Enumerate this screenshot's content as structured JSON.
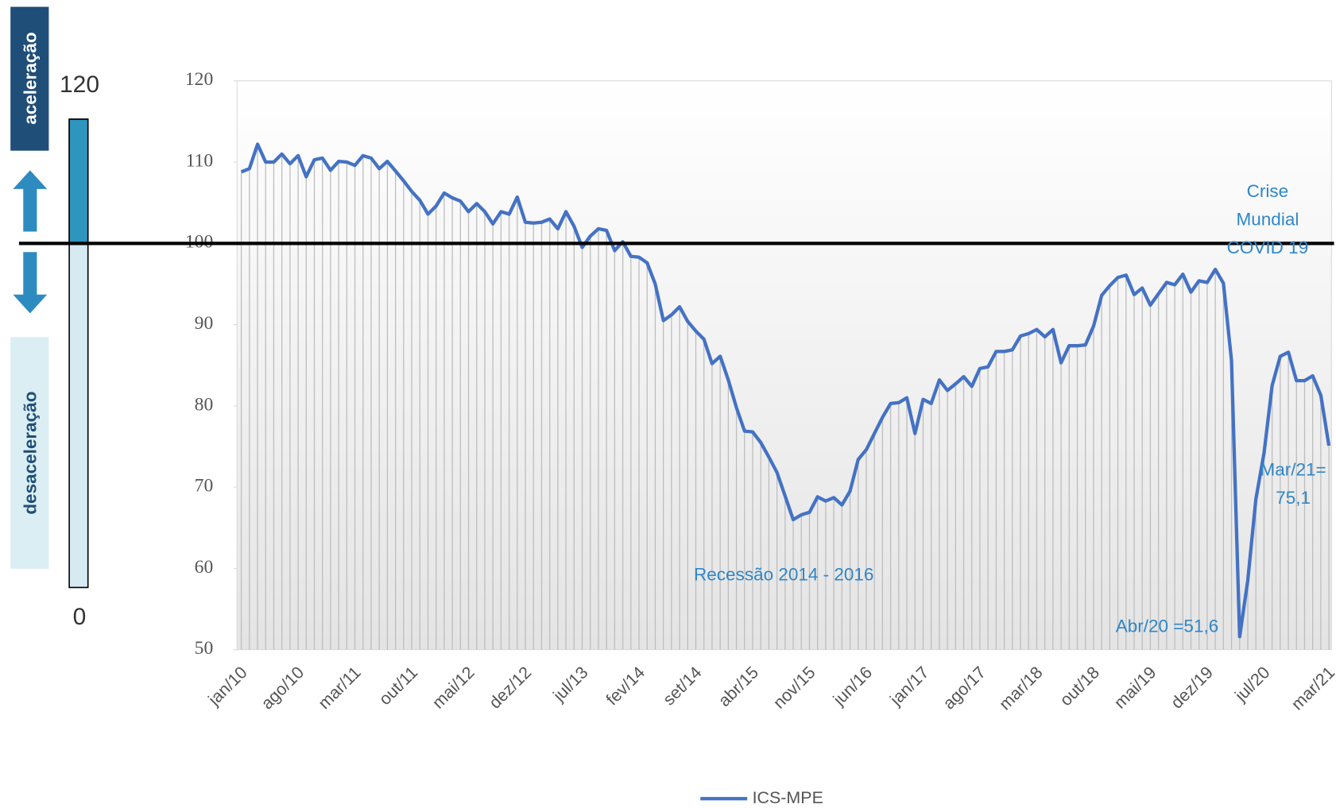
{
  "chart_data": {
    "type": "line",
    "categories": [
      "jan/10",
      null,
      null,
      null,
      null,
      null,
      null,
      "ago/10",
      null,
      null,
      null,
      null,
      null,
      null,
      "mar/11",
      null,
      null,
      null,
      null,
      null,
      null,
      "out/11",
      null,
      null,
      null,
      null,
      null,
      null,
      "mai/12",
      null,
      null,
      null,
      null,
      null,
      null,
      "dez/12",
      null,
      null,
      null,
      null,
      null,
      null,
      "jul/13",
      null,
      null,
      null,
      null,
      null,
      null,
      "fev/14",
      null,
      null,
      null,
      null,
      null,
      null,
      "set/14",
      null,
      null,
      null,
      null,
      null,
      null,
      "abr/15",
      null,
      null,
      null,
      null,
      null,
      null,
      "nov/15",
      null,
      null,
      null,
      null,
      null,
      null,
      "jun/16",
      null,
      null,
      null,
      null,
      null,
      null,
      "jan/17",
      null,
      null,
      null,
      null,
      null,
      null,
      "ago/17",
      null,
      null,
      null,
      null,
      null,
      null,
      "mar/18",
      null,
      null,
      null,
      null,
      null,
      null,
      "out/18",
      null,
      null,
      null,
      null,
      null,
      null,
      "mai/19",
      null,
      null,
      null,
      null,
      null,
      null,
      "dez/19",
      null,
      null,
      null,
      null,
      null,
      null,
      "jul/20",
      null,
      null,
      null,
      null,
      null,
      null,
      null,
      "mar/21"
    ],
    "series": [
      {
        "name": "ICS-MPE",
        "color": "#4472c4",
        "values": [
          108.8,
          109.2,
          112.2,
          110,
          110,
          111,
          109.8,
          110.8,
          108.2,
          110.3,
          110.5,
          109.0,
          110.1,
          110,
          109.6,
          110.8,
          110.5,
          109.2,
          110.1,
          108.9,
          107.7,
          106.4,
          105.3,
          103.6,
          104.6,
          106.2,
          105.6,
          105.2,
          103.9,
          104.9,
          103.9,
          102.4,
          103.9,
          103.6,
          105.7,
          102.6,
          102.5,
          102.6,
          103.0,
          101.8,
          103.9,
          102.1,
          99.5,
          100.9,
          101.8,
          101.6,
          99.1,
          100.2,
          98.4,
          98.3,
          97.6,
          95.0,
          90.5,
          91.2,
          92.2,
          90.4,
          89.2,
          88.2,
          85.2,
          86.1,
          83.2,
          79.8,
          76.9,
          76.8,
          75.5,
          73.7,
          71.8,
          68.9,
          66.0,
          66.6,
          66.9,
          68.8,
          68.3,
          68.7,
          67.8,
          69.5,
          73.4,
          74.6,
          76.6,
          78.6,
          80.3,
          80.4,
          81.0,
          76.6,
          80.8,
          80.3,
          83.2,
          81.9,
          82.7,
          83.6,
          82.4,
          84.6,
          84.8,
          86.7,
          86.7,
          86.9,
          88.6,
          88.9,
          89.4,
          88.5,
          89.4,
          85.3,
          87.4,
          87.4,
          87.5,
          89.8,
          93.6,
          94.8,
          95.8,
          96.1,
          93.7,
          94.5,
          92.4,
          93.8,
          95.2,
          94.9,
          96.2,
          94.0,
          95.4,
          95.2,
          96.8,
          95.1,
          85.6,
          51.6,
          58.5,
          68.5,
          74.2,
          82.5,
          86.1,
          86.6,
          83.1,
          83.1,
          83.7,
          81.3,
          75.1
        ]
      }
    ],
    "ylim": [
      50,
      120
    ],
    "yticks": [
      50,
      60,
      70,
      80,
      90,
      100,
      110,
      120
    ],
    "reference_line": 100,
    "annotations": [
      [
        "Crise",
        "Mundial",
        "COVID 19"
      ],
      [
        "Recessão 2014 - 2016"
      ],
      [
        "Abr/20 =51,6"
      ],
      [
        "Mar/21=",
        "75,1"
      ]
    ],
    "gauge": {
      "max": 120,
      "min": 0,
      "top_label": "aceleração",
      "bottom_label": "desaceleração"
    },
    "legend": "bottom"
  }
}
